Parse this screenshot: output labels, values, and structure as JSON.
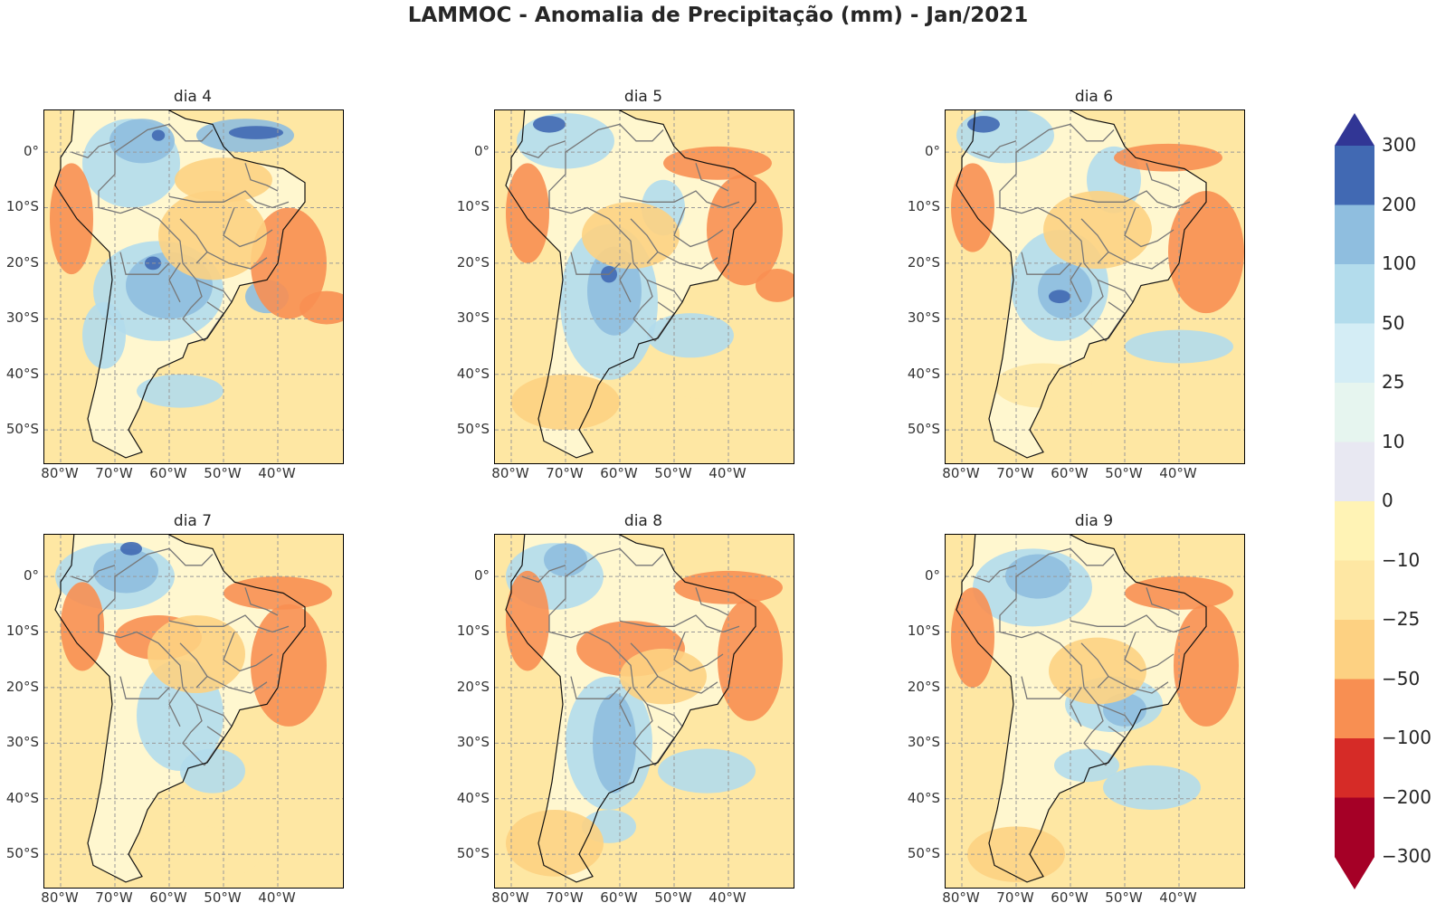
{
  "title": "LAMMOC - Anomalia de Precipitação (mm) - Jan/2021",
  "panels": [
    {
      "label": "dia 4"
    },
    {
      "label": "dia 5"
    },
    {
      "label": "dia 6"
    },
    {
      "label": "dia 7"
    },
    {
      "label": "dia 8"
    },
    {
      "label": "dia 9"
    }
  ],
  "lat_labels": [
    "0°",
    "10°S",
    "20°S",
    "30°S",
    "40°S",
    "50°S"
  ],
  "lon_labels": [
    "80°W",
    "70°W",
    "60°W",
    "50°W",
    "40°W"
  ],
  "colorbar": {
    "ticks": [
      "300",
      "200",
      "100",
      "50",
      "25",
      "10",
      "0",
      "−10",
      "−25",
      "−50",
      "−100",
      "−200",
      "−300"
    ],
    "colors": [
      "#313695",
      "#4169b3",
      "#8fbedf",
      "#b3dcec",
      "#d4edf5",
      "#e6f5ef",
      "#e8e8f2",
      "#fff3b5",
      "#fee7a3",
      "#fdd182",
      "#f88f52",
      "#d62b27",
      "#a50026"
    ]
  },
  "colors": {
    "wet_strong": "#4169b3",
    "wet_mid": "#8fbedf",
    "wet_light": "#b3dcec",
    "dry_light": "#fee7a3",
    "dry_mid": "#fdd182",
    "dry_strong": "#f88f52"
  }
}
